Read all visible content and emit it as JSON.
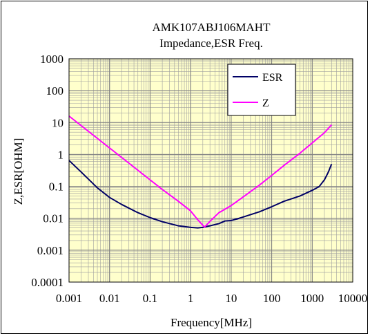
{
  "chart_data": {
    "type": "line",
    "title_line1": "AMK107ABJ106MAHT",
    "title_line2": "Impedance,ESR Freq.",
    "xlabel": "Frequency[MHz]",
    "ylabel": "Z,ESR[OHM]",
    "xscale": "log",
    "yscale": "log",
    "xlim": [
      0.001,
      10000
    ],
    "ylim": [
      0.0001,
      1000
    ],
    "x_ticks": [
      "0.001",
      "0.01",
      "0.1",
      "1",
      "10",
      "100",
      "1000",
      "10000"
    ],
    "y_ticks": [
      "1000",
      "100",
      "10",
      "1",
      "0.1",
      "0.01",
      "0.001",
      "0.0001"
    ],
    "grid": true,
    "legend_position": "top-right",
    "series": [
      {
        "name": "ESR",
        "color": "#000066",
        "points": [
          [
            0.001,
            0.65
          ],
          [
            0.002,
            0.28
          ],
          [
            0.005,
            0.09
          ],
          [
            0.01,
            0.045
          ],
          [
            0.02,
            0.027
          ],
          [
            0.05,
            0.015
          ],
          [
            0.1,
            0.0105
          ],
          [
            0.2,
            0.0078
          ],
          [
            0.5,
            0.0058
          ],
          [
            1,
            0.0052
          ],
          [
            1.5,
            0.005
          ],
          [
            2,
            0.0052
          ],
          [
            3,
            0.0058
          ],
          [
            5,
            0.0068
          ],
          [
            7,
            0.0082
          ],
          [
            10,
            0.0085
          ],
          [
            15,
            0.0098
          ],
          [
            20,
            0.011
          ],
          [
            50,
            0.016
          ],
          [
            100,
            0.023
          ],
          [
            200,
            0.034
          ],
          [
            500,
            0.05
          ],
          [
            1000,
            0.075
          ],
          [
            1500,
            0.1
          ],
          [
            2000,
            0.16
          ],
          [
            2500,
            0.28
          ],
          [
            3000,
            0.5
          ]
        ]
      },
      {
        "name": "Z",
        "color": "#ff00ff",
        "points": [
          [
            0.001,
            16
          ],
          [
            0.002,
            8
          ],
          [
            0.005,
            3.2
          ],
          [
            0.01,
            1.6
          ],
          [
            0.02,
            0.8
          ],
          [
            0.05,
            0.32
          ],
          [
            0.1,
            0.16
          ],
          [
            0.2,
            0.08
          ],
          [
            0.5,
            0.034
          ],
          [
            1,
            0.017
          ],
          [
            1.5,
            0.009
          ],
          [
            2.2,
            0.0053
          ],
          [
            3,
            0.008
          ],
          [
            5,
            0.015
          ],
          [
            10,
            0.025
          ],
          [
            20,
            0.047
          ],
          [
            50,
            0.11
          ],
          [
            100,
            0.22
          ],
          [
            200,
            0.45
          ],
          [
            500,
            1.1
          ],
          [
            1000,
            2.3
          ],
          [
            2000,
            4.8
          ],
          [
            3000,
            8.5
          ]
        ]
      }
    ],
    "colors": {
      "plot_background": "#ffffcc",
      "grid_line": "#a0a0a0",
      "axis": "#000000"
    }
  }
}
